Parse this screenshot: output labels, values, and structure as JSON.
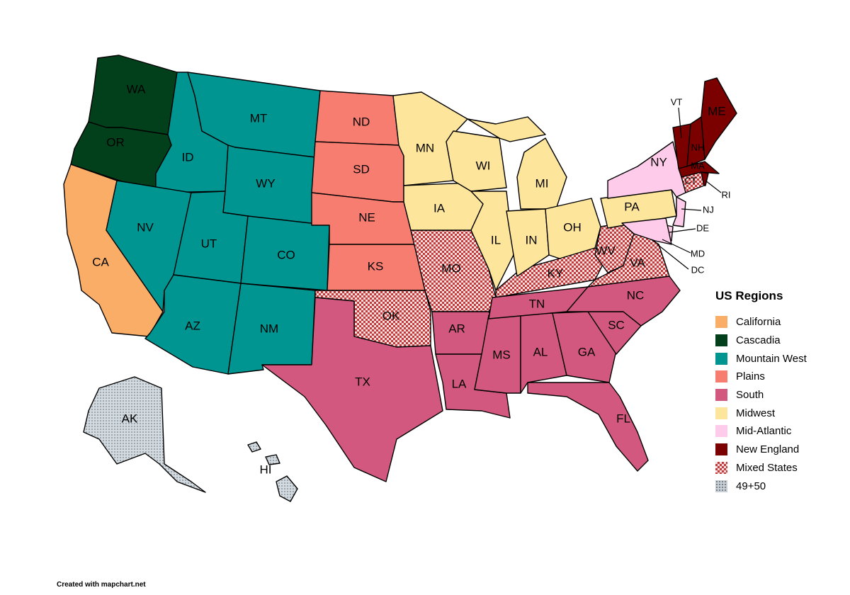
{
  "legend": {
    "title": "US Regions",
    "items": [
      {
        "label": "California",
        "color": "#f9ad66",
        "pattern": "solid"
      },
      {
        "label": "Cascadia",
        "color": "#02401b",
        "pattern": "solid"
      },
      {
        "label": "Mountain West",
        "color": "#019592",
        "pattern": "solid"
      },
      {
        "label": "Plains",
        "color": "#f87d71",
        "pattern": "solid"
      },
      {
        "label": "South",
        "color": "#d2587f",
        "pattern": "solid"
      },
      {
        "label": "Midwest",
        "color": "#fde59b",
        "pattern": "solid"
      },
      {
        "label": "Mid-Atlantic",
        "color": "#ffcbea",
        "pattern": "solid"
      },
      {
        "label": "New England",
        "color": "#7b0000",
        "pattern": "solid"
      },
      {
        "label": "Mixed States",
        "color": "#c43a3a",
        "pattern": "checker"
      },
      {
        "label": "49+50",
        "color": "#c8d0d6",
        "pattern": "dots"
      }
    ]
  },
  "states": {
    "WA": "WA",
    "OR": "OR",
    "CA": "CA",
    "ID": "ID",
    "MT": "MT",
    "WY": "WY",
    "NV": "NV",
    "UT": "UT",
    "CO": "CO",
    "AZ": "AZ",
    "NM": "NM",
    "ND": "ND",
    "SD": "SD",
    "NE": "NE",
    "KS": "KS",
    "OK": "OK",
    "TX": "TX",
    "MN": "MN",
    "IA": "IA",
    "MO": "MO",
    "AR": "AR",
    "LA": "LA",
    "WI": "WI",
    "IL": "IL",
    "MI": "MI",
    "IN": "IN",
    "OH": "OH",
    "KY": "KY",
    "TN": "TN",
    "MS": "MS",
    "AL": "AL",
    "GA": "GA",
    "FL": "FL",
    "SC": "SC",
    "NC": "NC",
    "VA": "VA",
    "WV": "WV",
    "PA": "PA",
    "NY": "NY",
    "NJ": "NJ",
    "DE": "DE",
    "MD": "MD",
    "DC": "DC",
    "CT": "CT",
    "RI": "RI",
    "MA": "MA",
    "VT": "VT",
    "NH": "NH",
    "ME": "ME",
    "AK": "AK",
    "HI": "HI"
  },
  "credit": "Created with mapchart.net"
}
